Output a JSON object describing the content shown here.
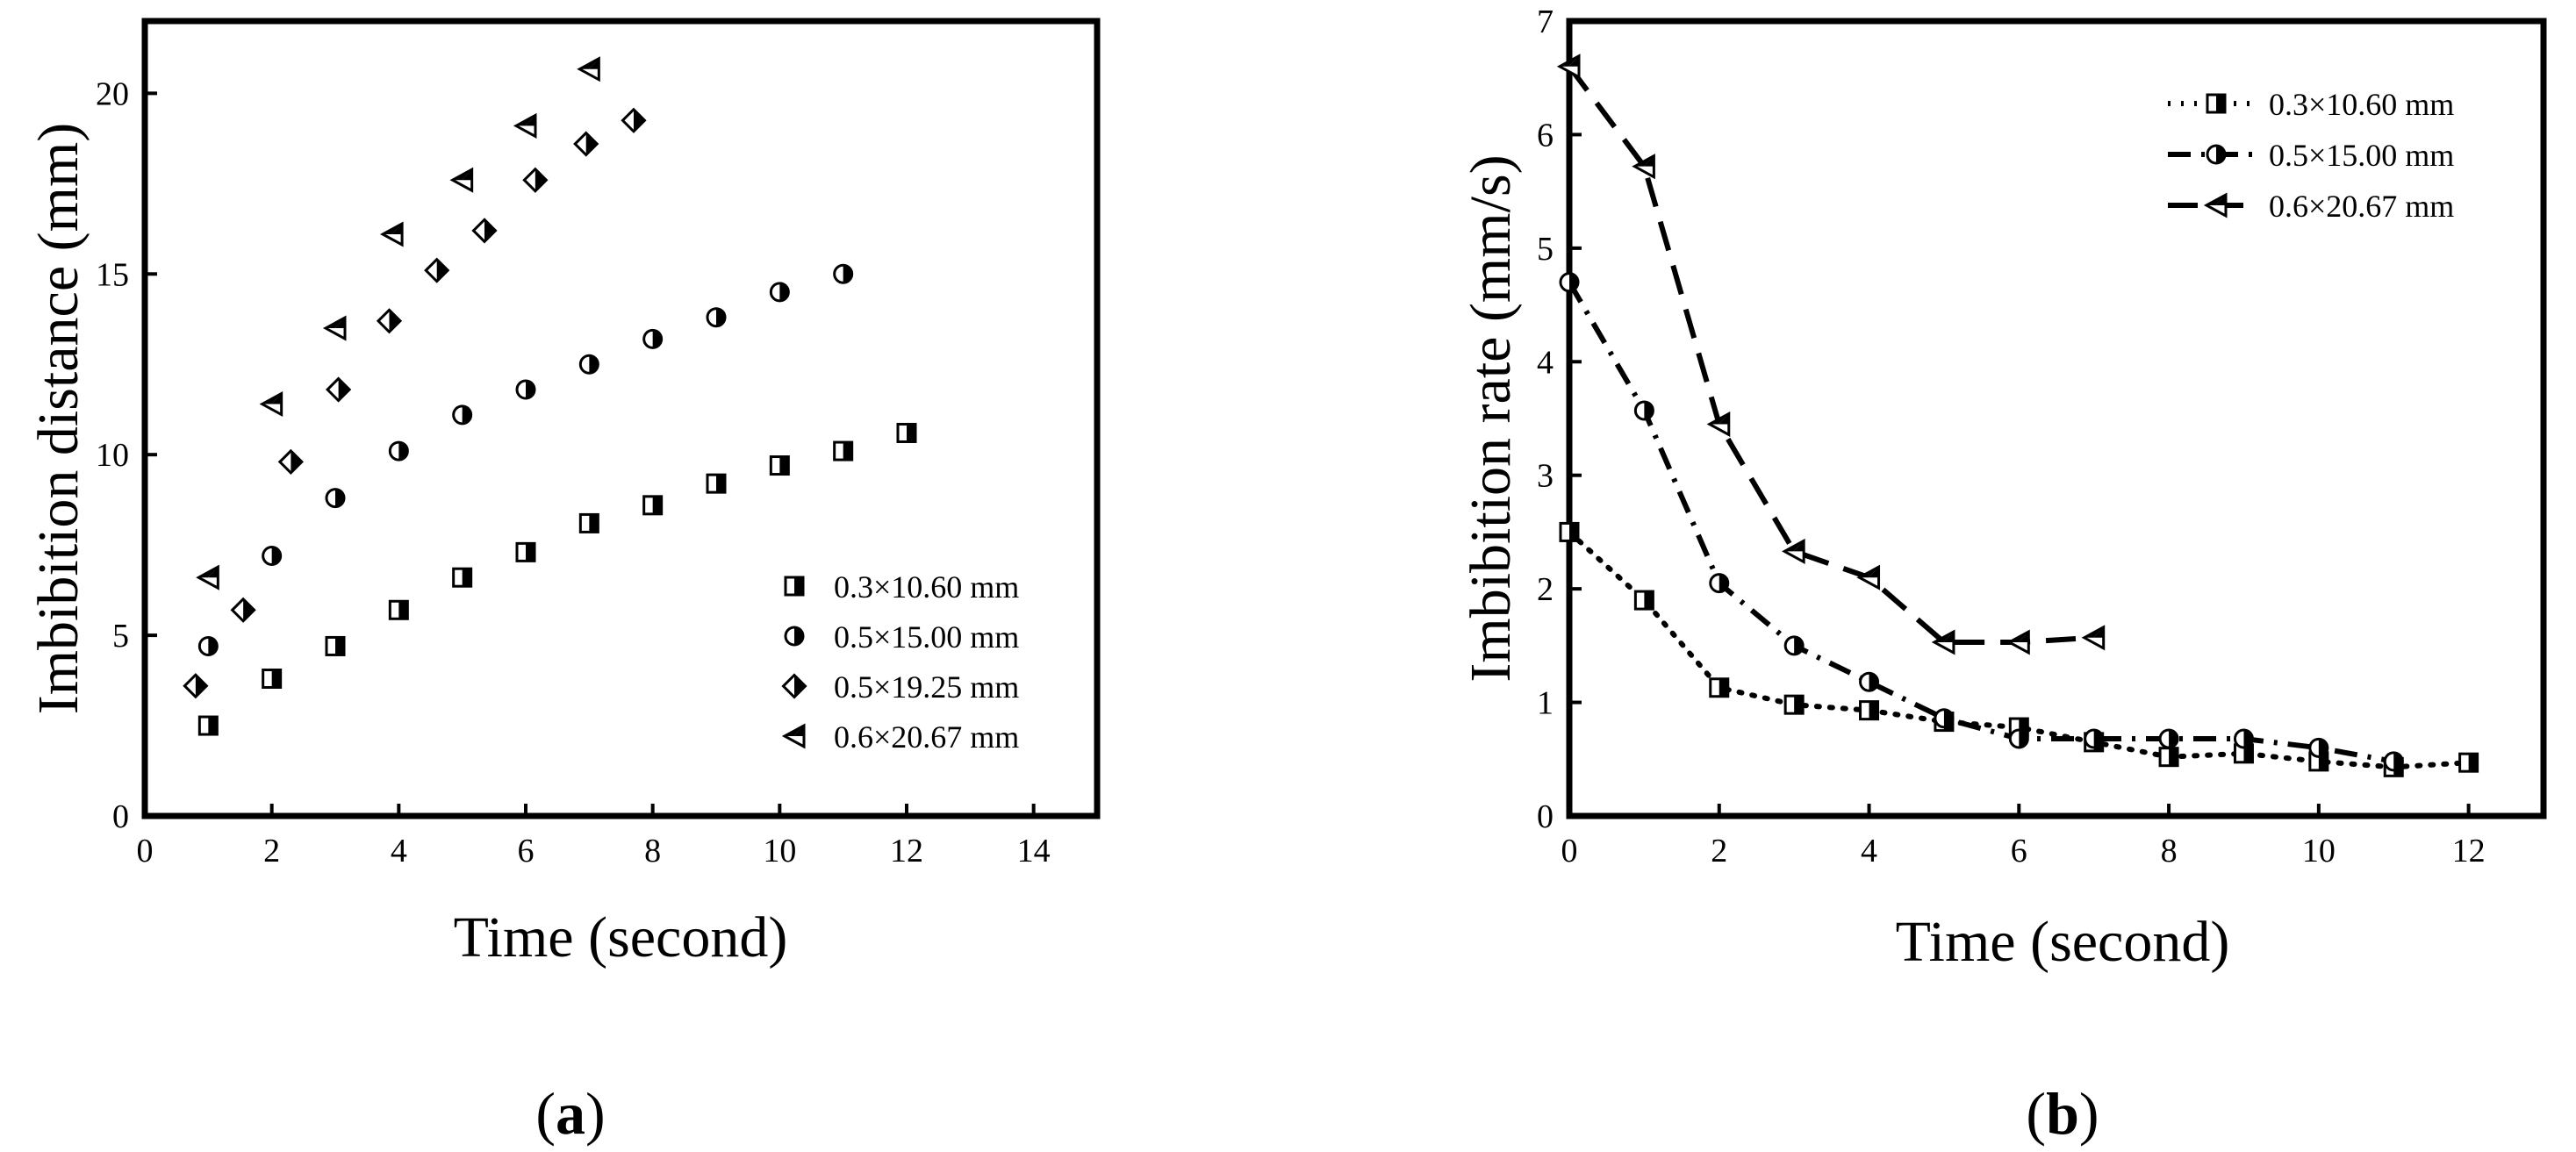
{
  "chart_data": [
    {
      "type": "scatter",
      "panel_label": "(a)",
      "panel_open": "(",
      "panel_letter": "a",
      "panel_close": ")",
      "title": "",
      "xlabel": "Time (second)",
      "ylabel": "Imbibition distance (mm)",
      "xlim": [
        0,
        15
      ],
      "ylim": [
        0,
        22
      ],
      "xticks": [
        0,
        2,
        4,
        6,
        8,
        10,
        12,
        14
      ],
      "yticks": [
        0,
        5,
        10,
        15,
        20
      ],
      "grid": false,
      "legend_position": "bottom-right",
      "series": [
        {
          "name": "0.3×10.60 mm",
          "marker": "half-square",
          "x": [
            1,
            2,
            3,
            4,
            5,
            6,
            7,
            8,
            9,
            10,
            11,
            12
          ],
          "y": [
            2.5,
            3.8,
            4.7,
            5.7,
            6.6,
            7.3,
            8.1,
            8.6,
            9.2,
            9.7,
            10.1,
            10.6
          ]
        },
        {
          "name": "0.5×15.00 mm",
          "marker": "half-circle",
          "x": [
            1,
            2,
            3,
            4,
            5,
            6,
            7,
            8,
            9,
            10,
            11
          ],
          "y": [
            4.7,
            7.2,
            8.8,
            10.1,
            11.1,
            11.8,
            12.5,
            13.2,
            13.8,
            14.5,
            15.0
          ]
        },
        {
          "name": "0.5×19.25 mm",
          "marker": "half-diamond",
          "x": [
            0.8,
            1.55,
            2.3,
            3.05,
            3.85,
            4.6,
            5.35,
            6.15,
            6.95,
            7.7
          ],
          "y": [
            3.6,
            5.7,
            9.8,
            11.8,
            13.7,
            15.1,
            16.2,
            17.6,
            18.6,
            19.25
          ]
        },
        {
          "name": "0.6×20.67 mm",
          "marker": "half-triangle-left",
          "x": [
            1,
            2,
            3,
            3.9,
            5,
            6,
            7
          ],
          "y": [
            6.6,
            11.4,
            13.5,
            16.1,
            17.6,
            19.1,
            20.67
          ]
        }
      ]
    },
    {
      "type": "line",
      "panel_label": "(b)",
      "panel_open": "(",
      "panel_letter": "b",
      "panel_close": ")",
      "title": "",
      "xlabel": "Time (second)",
      "ylabel": "Imbibition rate (mm/s)",
      "xlim": [
        0,
        13
      ],
      "ylim": [
        0,
        7
      ],
      "xticks": [
        0,
        2,
        4,
        6,
        8,
        10,
        12
      ],
      "yticks": [
        0,
        1,
        2,
        3,
        4,
        5,
        6,
        7
      ],
      "grid": false,
      "legend_position": "top-right",
      "series": [
        {
          "name": "0.3×10.60 mm",
          "marker": "half-square",
          "line": "dotted",
          "x": [
            0,
            1,
            2,
            3,
            4,
            5,
            6,
            7,
            8,
            9,
            10,
            11,
            12
          ],
          "y": [
            2.5,
            1.9,
            1.13,
            0.98,
            0.93,
            0.83,
            0.78,
            0.65,
            0.52,
            0.55,
            0.48,
            0.43,
            0.47
          ]
        },
        {
          "name": "0.5×15.00 mm",
          "marker": "half-circle",
          "line": "dash-dot",
          "x": [
            0,
            1,
            2,
            3,
            4,
            5,
            6,
            7,
            8,
            9,
            10,
            11
          ],
          "y": [
            4.7,
            3.57,
            2.05,
            1.5,
            1.18,
            0.86,
            0.68,
            0.68,
            0.68,
            0.68,
            0.6,
            0.48
          ]
        },
        {
          "name": "0.6×20.67 mm",
          "marker": "half-triangle-left",
          "line": "dashed",
          "x": [
            0,
            1,
            2,
            3,
            4,
            5,
            6,
            7
          ],
          "y": [
            6.6,
            5.72,
            3.45,
            2.33,
            2.1,
            1.53,
            1.53,
            1.57
          ]
        }
      ]
    }
  ]
}
